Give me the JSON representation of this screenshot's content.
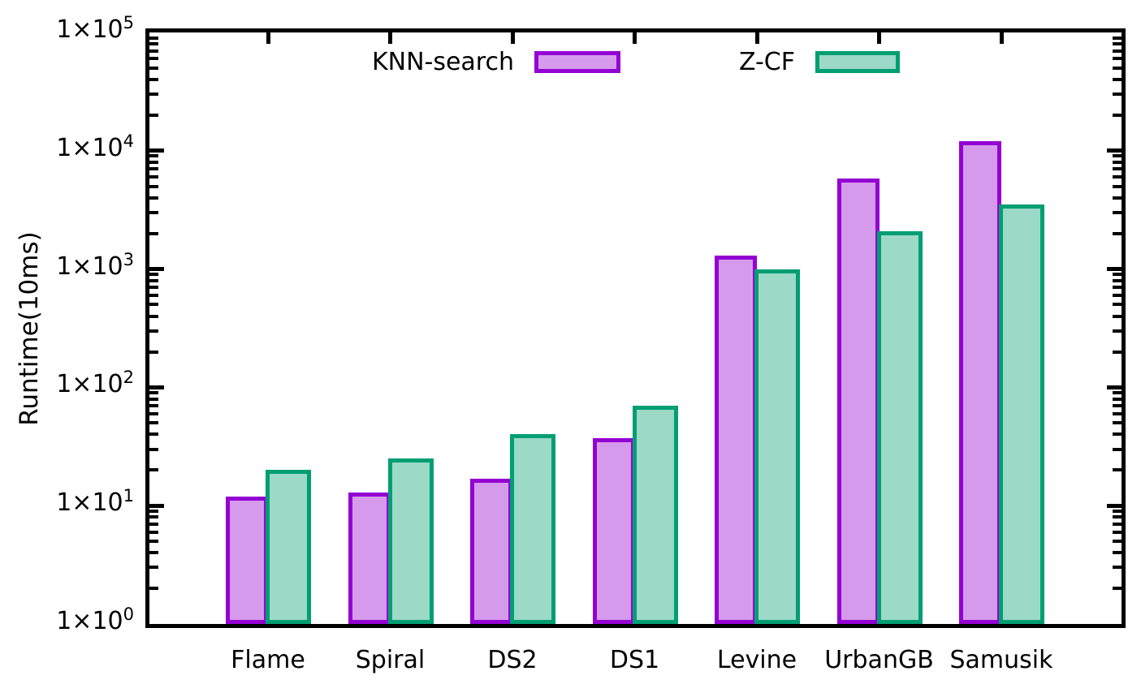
{
  "chart_data": {
    "type": "bar",
    "title": "",
    "xlabel": "",
    "ylabel": "Runtime(10ms)",
    "yscale": "log",
    "ylim": [
      1,
      100000
    ],
    "ytick_labels": [
      "1×10^0",
      "1×10^1",
      "1×10^2",
      "1×10^3",
      "1×10^4",
      "1×10^5"
    ],
    "grid": false,
    "legend_position": "top-inside",
    "axis_color": "#000000",
    "categories": [
      "Flame",
      "Spiral",
      "DS2",
      "DS1",
      "Levine",
      "UrbanGB",
      "Samusik"
    ],
    "series": [
      {
        "name": "KNN-search",
        "border_color": "#9400d3",
        "fill_color": "#d59aec",
        "values": [
          12,
          13,
          17,
          37,
          1300,
          5800,
          12000
        ]
      },
      {
        "name": "Z-CF",
        "border_color": "#009e73",
        "fill_color": "#9cd9c6",
        "values": [
          20,
          25,
          40,
          70,
          1000,
          2100,
          3500
        ]
      }
    ]
  }
}
